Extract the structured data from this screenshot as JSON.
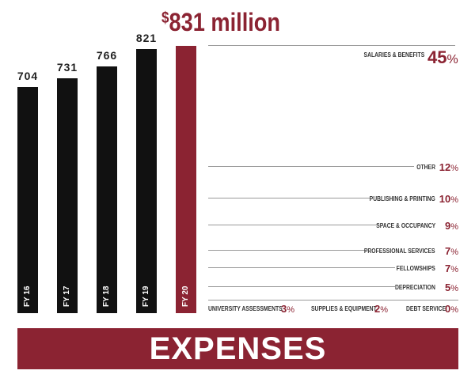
{
  "chart_data": {
    "type": "bar",
    "title": "831 million",
    "title_prefix": "$",
    "categories": [
      "FY 16",
      "FY 17",
      "FY 18",
      "FY 19",
      "FY 20"
    ],
    "values": [
      704,
      731,
      766,
      821,
      831
    ],
    "value_labels": [
      "704",
      "731",
      "766",
      "821",
      ""
    ],
    "colors": {
      "past": "#111111",
      "current": "#8b2332"
    },
    "breakdown": [
      {
        "label": "SALARIES & BENEFITS",
        "value": 45
      },
      {
        "label": "OTHER",
        "value": 12
      },
      {
        "label": "PUBLISHING & PRINTING",
        "value": 10
      },
      {
        "label": "SPACE & OCCUPANCY",
        "value": 9
      },
      {
        "label": "PROFESSIONAL SERVICES",
        "value": 7
      },
      {
        "label": "FELLOWSHIPS",
        "value": 7
      },
      {
        "label": "DEPRECIATION",
        "value": 5
      },
      {
        "label": "UNIVERSITY ASSESSMENTS",
        "value": 3
      },
      {
        "label": "SUPPLIES & EQUIPMENT",
        "value": 2
      },
      {
        "label": "DEBT SERVICE",
        "value": 0
      }
    ],
    "banner": "EXPENSES"
  }
}
